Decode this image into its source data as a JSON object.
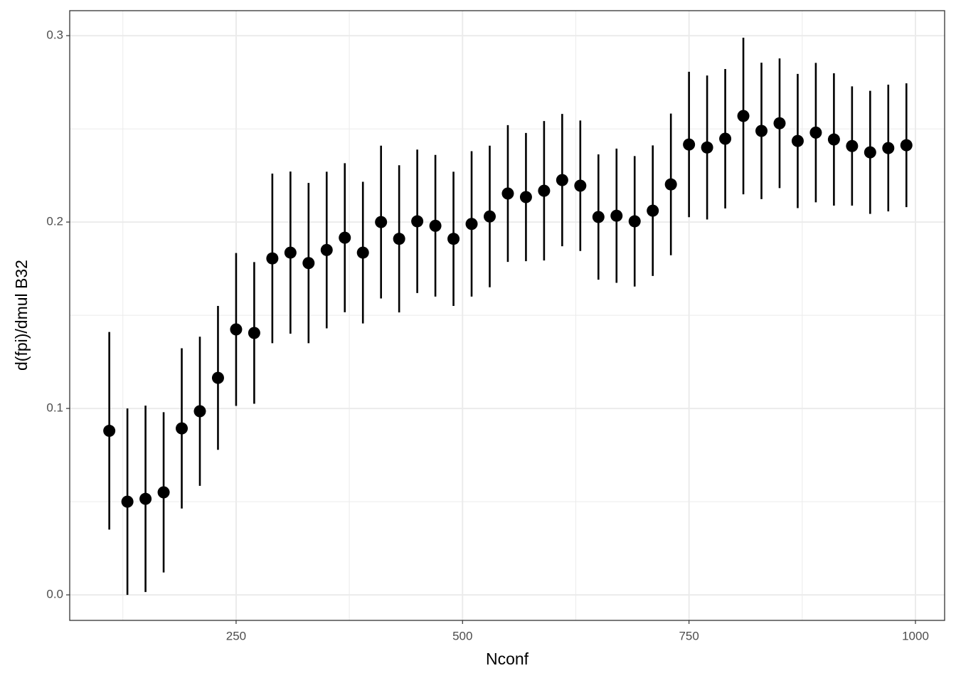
{
  "chart_data": {
    "type": "errorbar",
    "x_label": "Nconf",
    "y_label": "d(fpi)/dmul B32",
    "x": [
      110,
      130,
      150,
      170,
      190,
      210,
      230,
      250,
      270,
      290,
      310,
      330,
      350,
      370,
      390,
      410,
      430,
      450,
      470,
      490,
      510,
      530,
      550,
      570,
      590,
      610,
      630,
      650,
      670,
      690,
      710,
      730,
      750,
      770,
      790,
      810,
      830,
      850,
      870,
      890,
      910,
      930,
      950,
      970,
      990
    ],
    "values": [
      0.088,
      0.05,
      0.0515,
      0.055,
      0.0893,
      0.0985,
      0.1164,
      0.1424,
      0.1405,
      0.1805,
      0.1836,
      0.178,
      0.185,
      0.1916,
      0.1836,
      0.2,
      0.191,
      0.2004,
      0.198,
      0.191,
      0.199,
      0.203,
      0.2153,
      0.2134,
      0.2168,
      0.2225,
      0.2195,
      0.2027,
      0.2034,
      0.2004,
      0.2061,
      0.2202,
      0.2416,
      0.24,
      0.2447,
      0.2569,
      0.2489,
      0.253,
      0.2435,
      0.248,
      0.2443,
      0.2408,
      0.2374,
      0.2397,
      0.2412
    ],
    "errors": [
      0.053,
      0.05,
      0.05,
      0.043,
      0.043,
      0.04,
      0.0386,
      0.041,
      0.038,
      0.0455,
      0.0435,
      0.043,
      0.042,
      0.04,
      0.038,
      0.041,
      0.0395,
      0.0385,
      0.038,
      0.036,
      0.039,
      0.038,
      0.0367,
      0.0344,
      0.0374,
      0.0355,
      0.035,
      0.0336,
      0.036,
      0.035,
      0.035,
      0.038,
      0.039,
      0.0386,
      0.0374,
      0.042,
      0.0366,
      0.0348,
      0.036,
      0.0374,
      0.0355,
      0.032,
      0.033,
      0.034,
      0.0332
    ],
    "color": "#000000",
    "xlim": [
      66.3,
      1032.2
    ],
    "ylim": [
      -0.0137,
      0.3134
    ],
    "xticks": [
      250,
      500,
      750,
      1000
    ],
    "yticks": [
      {
        "value": 0,
        "label": "0.0"
      },
      0.1,
      0.2,
      0.3
    ],
    "grid": true
  }
}
